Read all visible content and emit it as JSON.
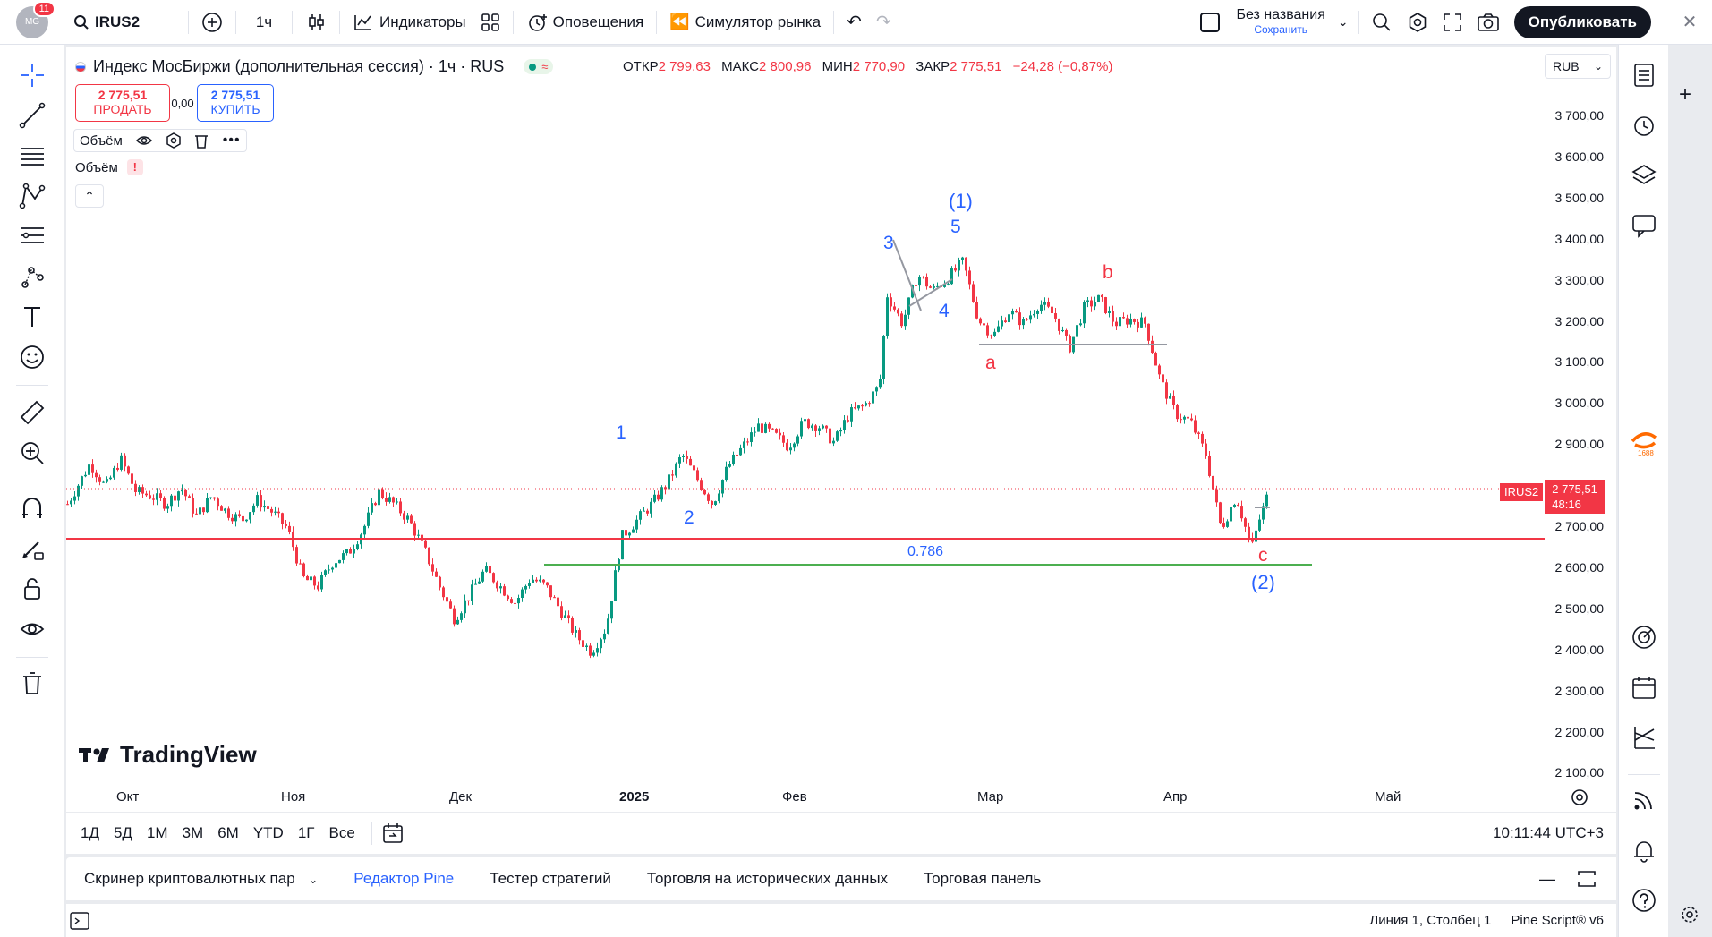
{
  "topbar": {
    "avatar_badge": "11",
    "avatar_text": "MG",
    "symbol": "IRUS2",
    "interval": "1ч",
    "indicators": "Индикаторы",
    "alerts": "Оповещения",
    "replay": "Симулятор рынка",
    "layout_name": "Без названия",
    "layout_save": "Сохранить",
    "publish": "Опубликовать"
  },
  "legend": {
    "title": "Индекс МосБиржи (дополнительная сессия) · 1ч · RUS",
    "open_label": "ОТКР",
    "open": "2 799,63",
    "high_label": "МАКС",
    "high": "2 800,96",
    "low_label": "МИН",
    "low": "2 770,90",
    "close_label": "ЗАКР",
    "close": "2 775,51",
    "change": "−24,28 (−0,87%)"
  },
  "trade": {
    "sell_price": "2 775,51",
    "sell_label": "ПРОДАТЬ",
    "spread": "0,00",
    "buy_price": "2 775,51",
    "buy_label": "КУПИТЬ"
  },
  "indicators": {
    "volume_1": "Объём",
    "volume_2": "Объём",
    "warn": "!"
  },
  "price_axis": {
    "currency": "RUB",
    "ticks": [
      "3 700,00",
      "3 600,00",
      "3 500,00",
      "3 400,00",
      "3 300,00",
      "3 200,00",
      "3 100,00",
      "3 000,00",
      "2 900,00",
      "2 800,00",
      "2 700,00",
      "2 600,00",
      "2 500,00",
      "2 400,00",
      "2 300,00",
      "2 200,00",
      "2 100,00"
    ],
    "last_symbol": "IRUS2",
    "last_price": "2 775,51",
    "countdown": "48:16"
  },
  "time_axis": {
    "ticks": [
      "Окт",
      "Ноя",
      "Дек",
      "2025",
      "Фев",
      "Мар",
      "Апр",
      "Май"
    ]
  },
  "annotations": {
    "w1": "1",
    "w2": "2",
    "w3": "3",
    "w4": "4",
    "w5": "5",
    "wave_1_big": "(1)",
    "wave_2_big": "(2)",
    "a": "a",
    "b": "b",
    "c": "c",
    "fib": "0.786"
  },
  "logo": "TradingView",
  "timeframes": [
    "1Д",
    "5Д",
    "1М",
    "3М",
    "6М",
    "YTD",
    "1Г",
    "Все"
  ],
  "clock": "10:11:44 UTC+3",
  "panel_tabs": [
    "Скринер криптовалютных пар",
    "Редактор Pine",
    "Тестер стратегий",
    "Торговля на исторических данных",
    "Торговая панель"
  ],
  "status": {
    "position": "Линия 1, Столбец 1",
    "version": "Pine Script® v6"
  },
  "colors": {
    "red": "#f23645",
    "blue": "#2962ff",
    "green": "#4caf50",
    "candle_up": "#089981",
    "candle_down": "#f23645"
  },
  "chart_data": {
    "type": "candlestick",
    "symbol": "IRUS2",
    "ylim": [
      2050,
      3750
    ],
    "path": [
      [
        0,
        2760
      ],
      [
        3,
        2860
      ],
      [
        5,
        2800
      ],
      [
        7,
        2870
      ],
      [
        9,
        2790
      ],
      [
        11,
        2780
      ],
      [
        13,
        2760
      ],
      [
        15,
        2800
      ],
      [
        17,
        2730
      ],
      [
        19,
        2780
      ],
      [
        21,
        2740
      ],
      [
        23,
        2720
      ],
      [
        25,
        2770
      ],
      [
        27,
        2740
      ],
      [
        29,
        2700
      ],
      [
        31,
        2580
      ],
      [
        33,
        2560
      ],
      [
        35,
        2620
      ],
      [
        37,
        2640
      ],
      [
        39,
        2700
      ],
      [
        41,
        2790
      ],
      [
        43,
        2760
      ],
      [
        45,
        2720
      ],
      [
        47,
        2650
      ],
      [
        49,
        2560
      ],
      [
        51,
        2480
      ],
      [
        53,
        2540
      ],
      [
        55,
        2600
      ],
      [
        57,
        2560
      ],
      [
        59,
        2520
      ],
      [
        61,
        2580
      ],
      [
        63,
        2560
      ],
      [
        65,
        2500
      ],
      [
        67,
        2440
      ],
      [
        69,
        2400
      ],
      [
        71,
        2460
      ],
      [
        73,
        2680
      ],
      [
        75,
        2720
      ],
      [
        77,
        2760
      ],
      [
        79,
        2810
      ],
      [
        81,
        2880
      ],
      [
        83,
        2820
      ],
      [
        85,
        2760
      ],
      [
        87,
        2850
      ],
      [
        89,
        2900
      ],
      [
        91,
        2950
      ],
      [
        93,
        2930
      ],
      [
        95,
        2900
      ],
      [
        97,
        2960
      ],
      [
        99,
        2950
      ],
      [
        101,
        2910
      ],
      [
        103,
        2980
      ],
      [
        105,
        3000
      ],
      [
        107,
        3050
      ],
      [
        108,
        3270
      ],
      [
        110,
        3200
      ],
      [
        112,
        3320
      ],
      [
        114,
        3280
      ],
      [
        116,
        3310
      ],
      [
        118,
        3350
      ],
      [
        120,
        3210
      ],
      [
        122,
        3170
      ],
      [
        124,
        3230
      ],
      [
        126,
        3200
      ],
      [
        128,
        3250
      ],
      [
        130,
        3220
      ],
      [
        132,
        3140
      ],
      [
        134,
        3240
      ],
      [
        136,
        3260
      ],
      [
        138,
        3200
      ],
      [
        140,
        3210
      ],
      [
        142,
        3200
      ],
      [
        144,
        3060
      ],
      [
        146,
        2980
      ],
      [
        148,
        2960
      ],
      [
        150,
        2880
      ],
      [
        152,
        2700
      ],
      [
        154,
        2780
      ],
      [
        156,
        2650
      ],
      [
        157,
        2720
      ],
      [
        158,
        2775
      ]
    ]
  }
}
